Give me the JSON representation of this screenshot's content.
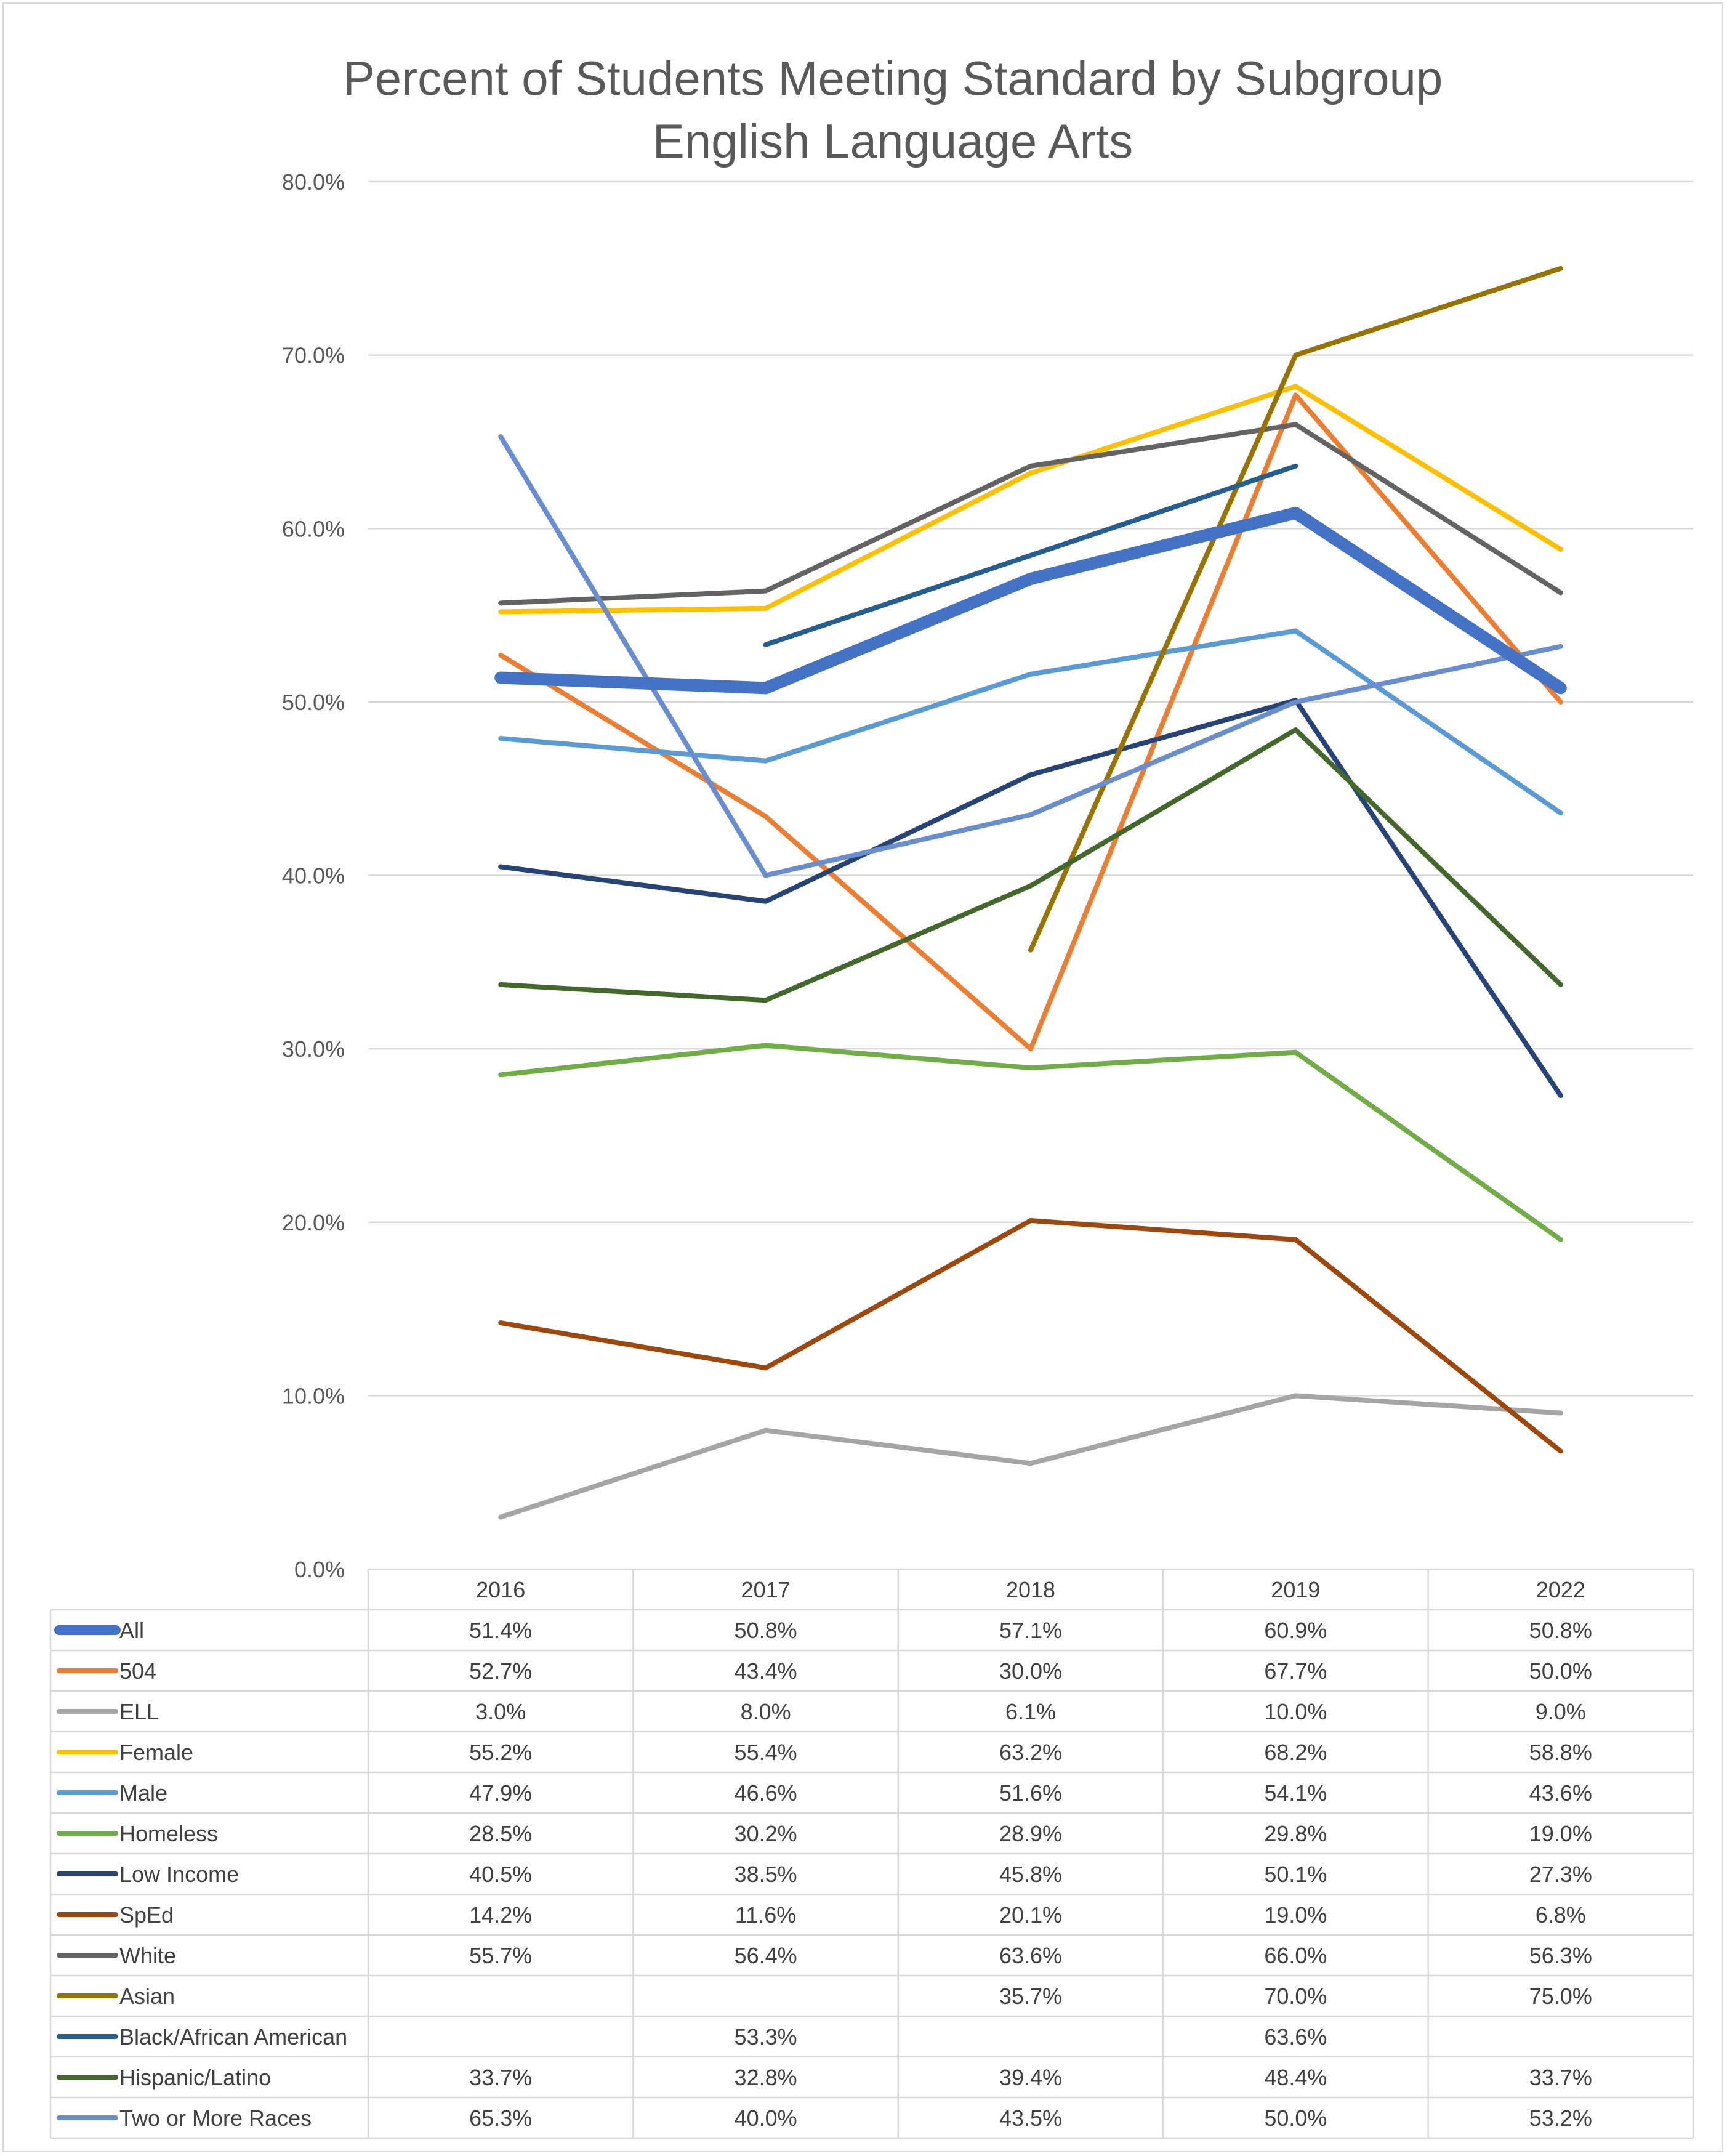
{
  "chart_data": {
    "type": "line",
    "title": "Percent of Students Meeting Standard by Subgroup",
    "subtitle": "English Language Arts",
    "xlabel": "",
    "ylabel": "",
    "categories": [
      "2016",
      "2017",
      "2018",
      "2019",
      "2022"
    ],
    "ylim": [
      0,
      80
    ],
    "y_ticks": [
      "0.0%",
      "10.0%",
      "20.0%",
      "30.0%",
      "40.0%",
      "50.0%",
      "60.0%",
      "70.0%",
      "80.0%"
    ],
    "grid": true,
    "legend": "data-table",
    "series": [
      {
        "name": "All",
        "color": "#4472C4",
        "thick": true,
        "values": [
          51.4,
          50.8,
          57.1,
          60.9,
          50.8
        ],
        "labels": [
          "51.4%",
          "50.8%",
          "57.1%",
          "60.9%",
          "50.8%"
        ]
      },
      {
        "name": "504",
        "color": "#ED7D31",
        "values": [
          52.7,
          43.4,
          30.0,
          67.7,
          50.0
        ],
        "labels": [
          "52.7%",
          "43.4%",
          "30.0%",
          "67.7%",
          "50.0%"
        ]
      },
      {
        "name": "ELL",
        "color": "#A5A5A5",
        "values": [
          3.0,
          8.0,
          6.1,
          10.0,
          9.0
        ],
        "labels": [
          "3.0%",
          "8.0%",
          "6.1%",
          "10.0%",
          "9.0%"
        ]
      },
      {
        "name": "Female",
        "color": "#FFC000",
        "values": [
          55.2,
          55.4,
          63.2,
          68.2,
          58.8
        ],
        "labels": [
          "55.2%",
          "55.4%",
          "63.2%",
          "68.2%",
          "58.8%"
        ]
      },
      {
        "name": "Male",
        "color": "#5B9BD5",
        "values": [
          47.9,
          46.6,
          51.6,
          54.1,
          43.6
        ],
        "labels": [
          "47.9%",
          "46.6%",
          "51.6%",
          "54.1%",
          "43.6%"
        ]
      },
      {
        "name": "Homeless",
        "color": "#70AD47",
        "values": [
          28.5,
          30.2,
          28.9,
          29.8,
          19.0
        ],
        "labels": [
          "28.5%",
          "30.2%",
          "28.9%",
          "29.8%",
          "19.0%"
        ]
      },
      {
        "name": "Low Income",
        "color": "#264478",
        "values": [
          40.5,
          38.5,
          45.8,
          50.1,
          27.3
        ],
        "labels": [
          "40.5%",
          "38.5%",
          "45.8%",
          "50.1%",
          "27.3%"
        ]
      },
      {
        "name": "SpEd",
        "color": "#9E480E",
        "values": [
          14.2,
          11.6,
          20.1,
          19.0,
          6.8
        ],
        "labels": [
          "14.2%",
          "11.6%",
          "20.1%",
          "19.0%",
          "6.8%"
        ]
      },
      {
        "name": "White",
        "color": "#636363",
        "values": [
          55.7,
          56.4,
          63.6,
          66.0,
          56.3
        ],
        "labels": [
          "55.7%",
          "56.4%",
          "63.6%",
          "66.0%",
          "56.3%"
        ]
      },
      {
        "name": "Asian",
        "color": "#997300",
        "values": [
          null,
          null,
          35.7,
          70.0,
          75.0
        ],
        "labels": [
          "",
          "",
          "35.7%",
          "70.0%",
          "75.0%"
        ]
      },
      {
        "name": "Black/African American",
        "color": "#255E91",
        "values": [
          null,
          53.3,
          null,
          63.6,
          null
        ],
        "labels": [
          "",
          "53.3%",
          "",
          "63.6%",
          ""
        ]
      },
      {
        "name": "Hispanic/Latino",
        "color": "#43682B",
        "values": [
          33.7,
          32.8,
          39.4,
          48.4,
          33.7
        ],
        "labels": [
          "33.7%",
          "32.8%",
          "39.4%",
          "48.4%",
          "33.7%"
        ]
      },
      {
        "name": "Two or More Races",
        "color": "#698ED0",
        "values": [
          65.3,
          40.0,
          43.5,
          50.0,
          53.2
        ],
        "labels": [
          "65.3%",
          "40.0%",
          "43.5%",
          "50.0%",
          "53.2%"
        ]
      }
    ]
  }
}
